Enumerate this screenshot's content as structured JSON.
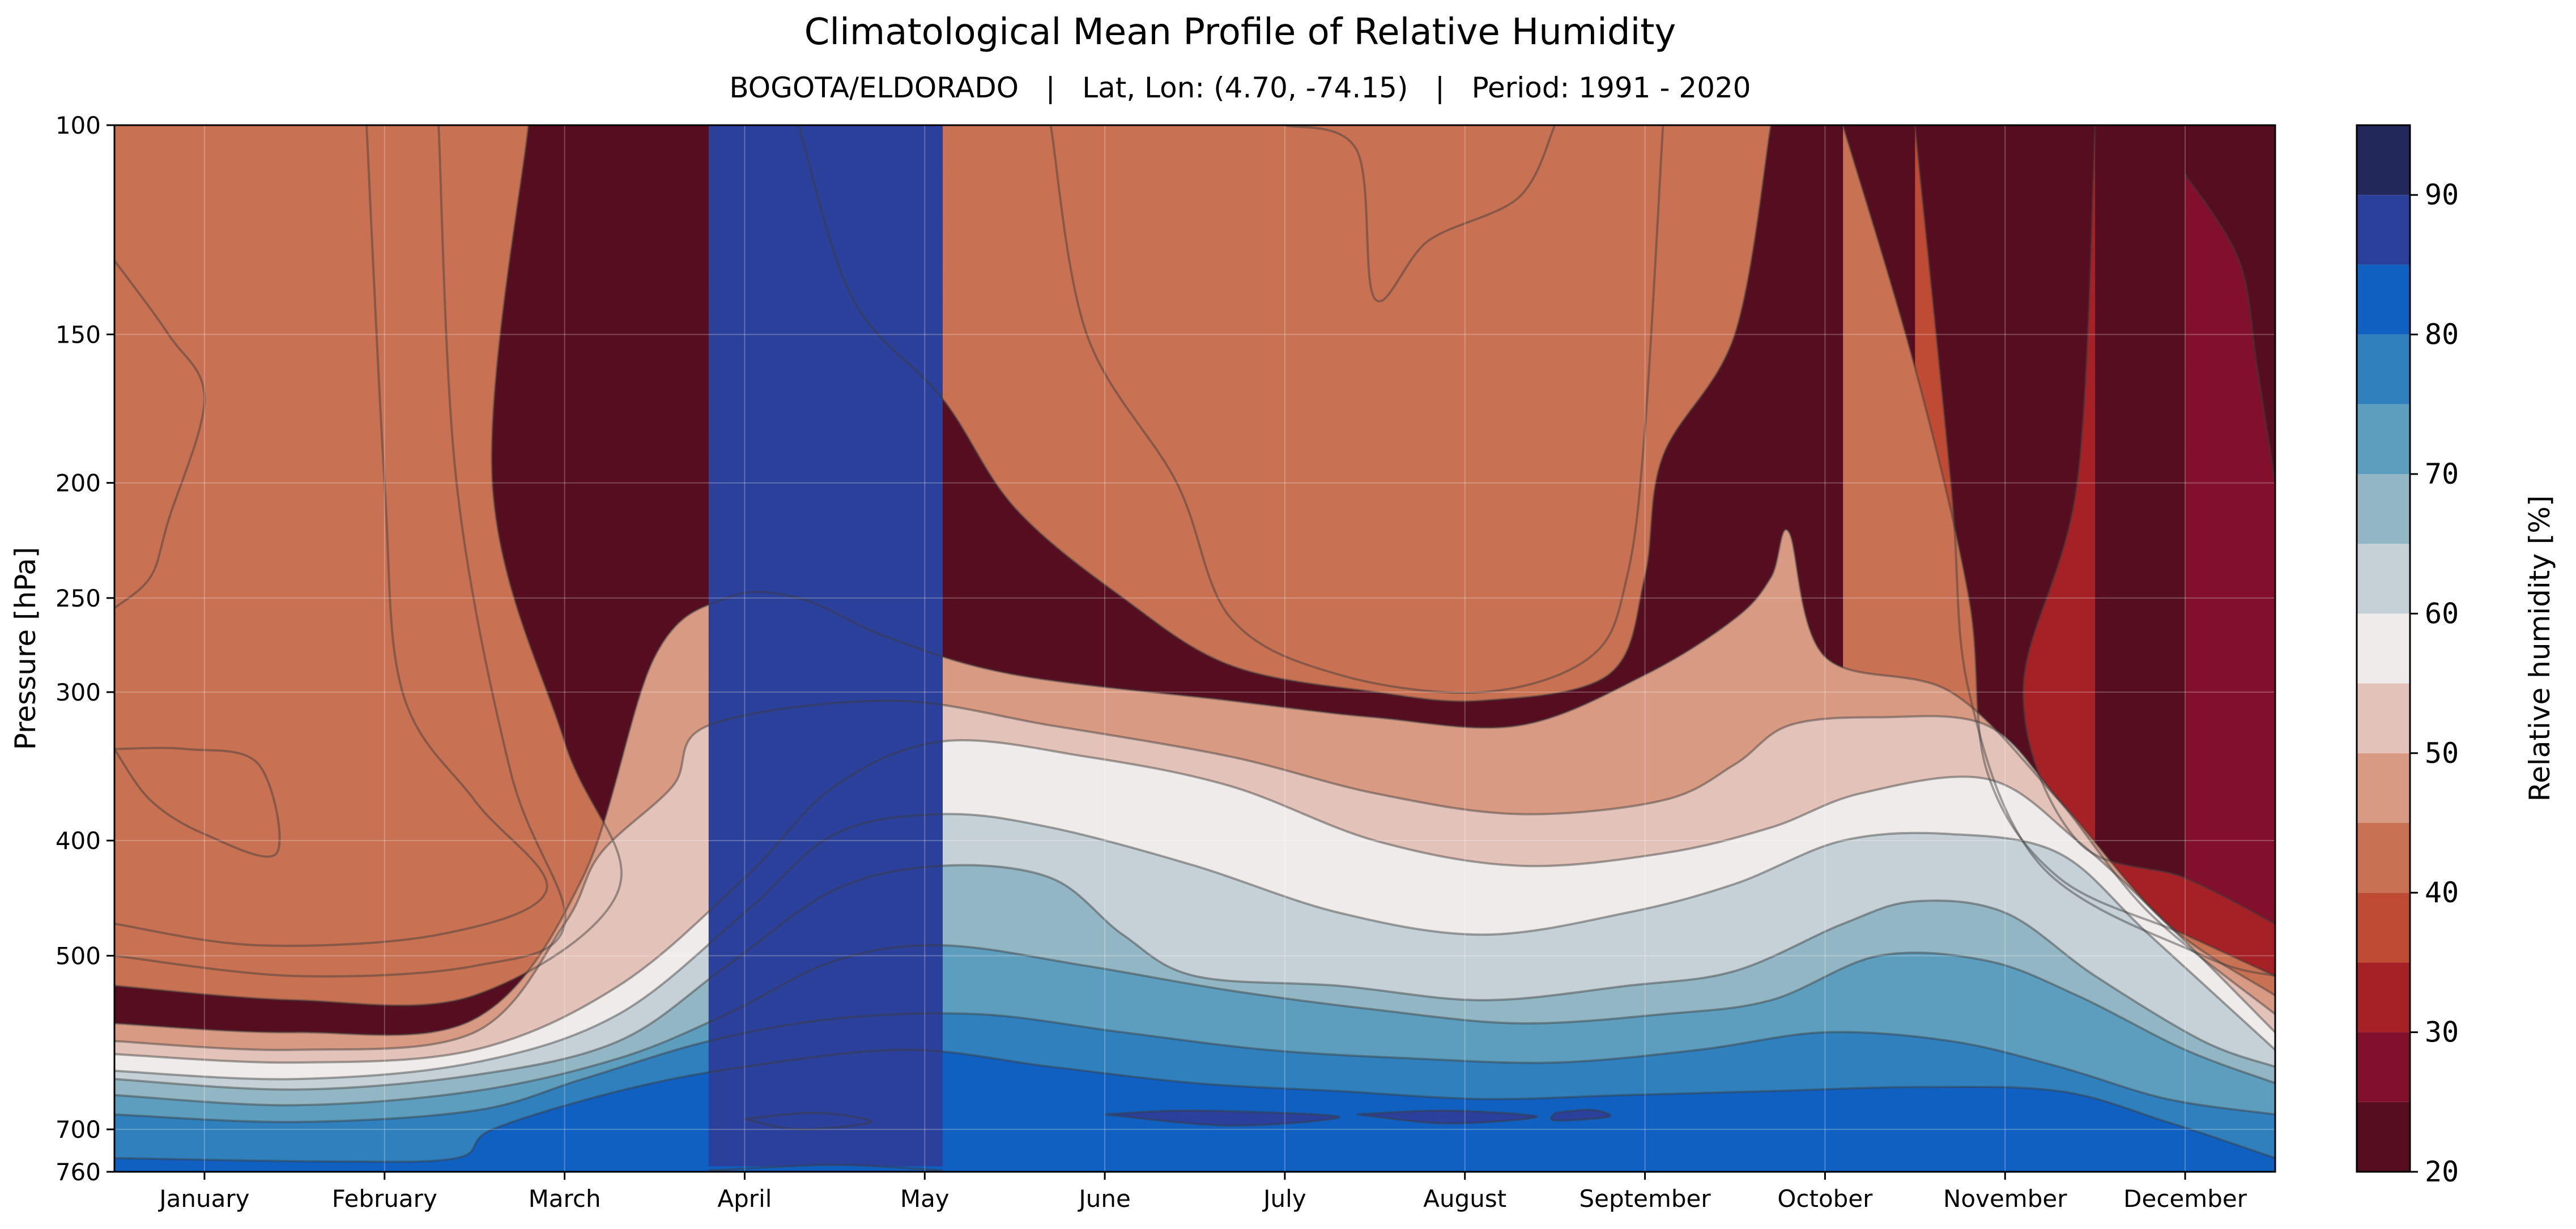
{
  "chart_data": {
    "type": "heatmap",
    "title": "Climatological Mean Profile of Relative Humidity",
    "subtitle": "BOGOTA/ELDORADO   |   Lat, Lon: (4.70, -74.15)   |   Period: 1991 - 2020",
    "xlabel": "",
    "ylabel": "Pressure [hPa]",
    "colorbar_label": "Relative humidity [%]",
    "x": [
      "January",
      "February",
      "March",
      "April",
      "May",
      "June",
      "July",
      "August",
      "September",
      "October",
      "November",
      "December"
    ],
    "y_ticks": [
      100,
      150,
      200,
      250,
      300,
      400,
      500,
      700,
      760
    ],
    "ylim": [
      760,
      100
    ],
    "y_scale": "log",
    "grid": true,
    "levels": [
      20,
      25,
      30,
      35,
      40,
      45,
      50,
      55,
      60,
      65,
      70,
      75,
      80,
      85,
      90,
      95
    ],
    "colorbar_ticks": [
      20,
      30,
      40,
      50,
      60,
      70,
      80,
      90
    ],
    "colors": [
      "#560d1f",
      "#820f2b",
      "#a52126",
      "#bf4b34",
      "#c97153",
      "#d89a82",
      "#e2c2b9",
      "#efebea",
      "#c5d1d7",
      "#92b6c3",
      "#5d9ebf",
      "#2f80bd",
      "#1060c1",
      "#2b409a",
      "#22285a"
    ],
    "boundaries": [
      {
        "level": 25,
        "segments": [
          [
            [
              0.0,
              130
            ],
            [
              0.3,
              150
            ],
            [
              0.5,
              170
            ],
            [
              0.3,
              215
            ],
            [
              0.2,
              240
            ],
            [
              0.0,
              255
            ]
          ],
          [
            [
              0.0,
              335
            ],
            [
              0.2,
              370
            ],
            [
              0.5,
              395
            ],
            [
              0.9,
              410
            ],
            [
              0.8,
              345
            ],
            [
              0.4,
              335
            ],
            [
              0.0,
              335
            ]
          ],
          [
            [
              11.5,
              110
            ],
            [
              11.8,
              130
            ],
            [
              11.9,
              160
            ],
            [
              12.0,
              200
            ]
          ]
        ]
      },
      {
        "level": 30,
        "segments": [
          [
            [
              0.0,
              470
            ],
            [
              0.8,
              490
            ],
            [
              1.8,
              480
            ],
            [
              2.4,
              440
            ],
            [
              2.0,
              370
            ],
            [
              1.6,
              300
            ],
            [
              1.5,
              200
            ],
            [
              1.4,
              100
            ]
          ],
          [
            [
              6.5,
              100
            ],
            [
              6.9,
              105
            ],
            [
              7.0,
              140
            ],
            [
              7.3,
              125
            ],
            [
              7.8,
              115
            ],
            [
              8.0,
              100
            ]
          ],
          [
            [
              11.0,
              100
            ],
            [
              10.9,
              200
            ],
            [
              10.6,
              300
            ],
            [
              10.9,
              400
            ],
            [
              11.5,
              430
            ],
            [
              12.0,
              470
            ]
          ]
        ]
      },
      {
        "level": 35,
        "segments": [
          [
            [
              0.0,
              500
            ],
            [
              1.0,
              520
            ],
            [
              2.0,
              510
            ],
            [
              2.5,
              470
            ],
            [
              2.2,
              350
            ],
            [
              1.9,
              200
            ],
            [
              1.8,
              100
            ]
          ],
          [
            [
              5.2,
              100
            ],
            [
              5.4,
              150
            ],
            [
              5.9,
              200
            ],
            [
              6.2,
              260
            ],
            [
              6.8,
              290
            ],
            [
              7.6,
              300
            ],
            [
              8.2,
              280
            ],
            [
              8.4,
              240
            ],
            [
              8.5,
              180
            ],
            [
              8.6,
              100
            ]
          ],
          [
            [
              10.0,
              100
            ],
            [
              10.2,
              200
            ],
            [
              10.3,
              300
            ],
            [
              10.7,
              420
            ],
            [
              11.6,
              500
            ],
            [
              12.0,
              520
            ]
          ]
        ]
      },
      {
        "level": 40,
        "segments": [
          [
            [
              0.0,
              530
            ],
            [
              1.0,
              545
            ],
            [
              2.0,
              540
            ],
            [
              2.8,
              440
            ],
            [
              2.5,
              330
            ],
            [
              2.1,
              200
            ],
            [
              2.3,
              100
            ]
          ],
          [
            [
              3.8,
              100
            ],
            [
              4.1,
              140
            ],
            [
              4.6,
              170
            ],
            [
              5.0,
              210
            ],
            [
              5.6,
              250
            ],
            [
              6.2,
              285
            ],
            [
              7.0,
              300
            ],
            [
              7.6,
              305
            ],
            [
              8.3,
              290
            ],
            [
              8.5,
              240
            ],
            [
              8.6,
              190
            ],
            [
              9.0,
              150
            ],
            [
              9.2,
              100
            ]
          ],
          [
            [
              9.6,
              100
            ],
            [
              10.0,
              160
            ],
            [
              10.3,
              250
            ],
            [
              10.4,
              350
            ],
            [
              10.8,
              430
            ],
            [
              11.5,
              480
            ],
            [
              12.0,
              520
            ]
          ]
        ]
      },
      {
        "level": 45,
        "segments": [
          [
            [
              0.0,
              570
            ],
            [
              1.0,
              580
            ],
            [
              2.0,
              565
            ],
            [
              2.6,
              430
            ],
            [
              3.0,
              280
            ],
            [
              3.4,
              250
            ],
            [
              3.8,
              250
            ],
            [
              4.3,
              270
            ],
            [
              5.0,
              290
            ],
            [
              6.2,
              305
            ],
            [
              7.0,
              315
            ],
            [
              7.8,
              320
            ],
            [
              8.5,
              290
            ],
            [
              9.0,
              260
            ],
            [
              9.2,
              240
            ],
            [
              9.3,
              220
            ],
            [
              9.5,
              280
            ],
            [
              10.2,
              300
            ],
            [
              10.8,
              370
            ],
            [
              11.4,
              470
            ],
            [
              12.0,
              540
            ]
          ]
        ]
      },
      {
        "level": 50,
        "segments": [
          [
            [
              0.0,
              590
            ],
            [
              1.0,
              600
            ],
            [
              2.0,
              580
            ],
            [
              2.5,
              470
            ],
            [
              2.7,
              410
            ],
            [
              3.1,
              360
            ],
            [
              3.3,
              320
            ],
            [
              4.3,
              305
            ],
            [
              5.2,
              320
            ],
            [
              6.2,
              340
            ],
            [
              7.0,
              365
            ],
            [
              7.8,
              380
            ],
            [
              8.6,
              370
            ],
            [
              9.0,
              345
            ],
            [
              9.3,
              320
            ],
            [
              9.8,
              315
            ],
            [
              10.4,
              320
            ],
            [
              10.8,
              370
            ],
            [
              11.3,
              460
            ],
            [
              12.0,
              560
            ]
          ]
        ]
      },
      {
        "level": 55,
        "segments": [
          [
            [
              0.0,
              605
            ],
            [
              1.0,
              615
            ],
            [
              2.0,
              600
            ],
            [
              2.8,
              530
            ],
            [
              3.5,
              430
            ],
            [
              4.0,
              360
            ],
            [
              4.6,
              330
            ],
            [
              5.4,
              340
            ],
            [
              6.2,
              360
            ],
            [
              7.0,
              400
            ],
            [
              7.8,
              420
            ],
            [
              8.6,
              410
            ],
            [
              9.2,
              390
            ],
            [
              9.7,
              365
            ],
            [
              10.4,
              355
            ],
            [
              10.9,
              400
            ],
            [
              11.4,
              470
            ],
            [
              12.0,
              580
            ]
          ]
        ]
      },
      {
        "level": 60,
        "segments": [
          [
            [
              0.0,
              625
            ],
            [
              1.0,
              635
            ],
            [
              2.0,
              615
            ],
            [
              2.8,
              560
            ],
            [
              3.5,
              460
            ],
            [
              4.0,
              395
            ],
            [
              4.6,
              380
            ],
            [
              5.2,
              390
            ],
            [
              6.0,
              420
            ],
            [
              6.8,
              460
            ],
            [
              7.6,
              480
            ],
            [
              8.4,
              460
            ],
            [
              9.0,
              435
            ],
            [
              9.6,
              400
            ],
            [
              10.2,
              395
            ],
            [
              10.8,
              410
            ],
            [
              11.3,
              480
            ],
            [
              12.0,
              600
            ]
          ]
        ]
      },
      {
        "level": 65,
        "segments": [
          [
            [
              0.0,
              635
            ],
            [
              1.0,
              648
            ],
            [
              2.0,
              630
            ],
            [
              2.8,
              590
            ],
            [
              3.4,
              510
            ],
            [
              4.0,
              440
            ],
            [
              4.6,
              420
            ],
            [
              5.2,
              430
            ],
            [
              5.6,
              480
            ],
            [
              6.0,
              520
            ],
            [
              6.8,
              530
            ],
            [
              7.6,
              545
            ],
            [
              8.4,
              530
            ],
            [
              9.0,
              515
            ],
            [
              9.6,
              470
            ],
            [
              10.0,
              450
            ],
            [
              10.5,
              460
            ],
            [
              11.0,
              520
            ],
            [
              11.6,
              590
            ],
            [
              12.0,
              620
            ]
          ]
        ]
      },
      {
        "level": 70,
        "segments": [
          [
            [
              0.0,
              655
            ],
            [
              1.0,
              668
            ],
            [
              2.0,
              650
            ],
            [
              2.8,
              610
            ],
            [
              3.4,
              560
            ],
            [
              4.0,
              505
            ],
            [
              4.6,
              490
            ],
            [
              5.4,
              510
            ],
            [
              6.2,
              535
            ],
            [
              7.0,
              555
            ],
            [
              7.8,
              570
            ],
            [
              8.6,
              560
            ],
            [
              9.2,
              545
            ],
            [
              9.8,
              500
            ],
            [
              10.4,
              505
            ],
            [
              10.9,
              540
            ],
            [
              11.5,
              600
            ],
            [
              12.0,
              640
            ]
          ]
        ]
      },
      {
        "level": 75,
        "segments": [
          [
            [
              0.0,
              680
            ],
            [
              1.0,
              690
            ],
            [
              2.0,
              675
            ],
            [
              2.6,
              635
            ],
            [
              3.3,
              590
            ],
            [
              4.0,
              565
            ],
            [
              4.8,
              560
            ],
            [
              5.6,
              580
            ],
            [
              6.4,
              600
            ],
            [
              7.2,
              610
            ],
            [
              8.0,
              615
            ],
            [
              8.8,
              600
            ],
            [
              9.5,
              580
            ],
            [
              10.2,
              590
            ],
            [
              10.8,
              620
            ],
            [
              11.4,
              660
            ],
            [
              12.0,
              680
            ]
          ]
        ]
      },
      {
        "level": 80,
        "segments": [
          [
            [
              0.0,
              740
            ],
            [
              1.2,
              745
            ],
            [
              1.9,
              740
            ],
            [
              2.1,
              700
            ],
            [
              2.8,
              650
            ],
            [
              3.5,
              620
            ],
            [
              4.4,
              600
            ],
            [
              5.2,
              620
            ],
            [
              6.0,
              640
            ],
            [
              6.8,
              650
            ],
            [
              7.6,
              660
            ],
            [
              8.4,
              655
            ],
            [
              9.2,
              650
            ],
            [
              10.0,
              645
            ],
            [
              10.8,
              650
            ],
            [
              11.4,
              690
            ],
            [
              12.0,
              740
            ]
          ]
        ]
      },
      {
        "level": 85,
        "segments": [
          [
            [
              3.5,
              686
            ],
            [
              3.9,
              678
            ],
            [
              4.2,
              690
            ],
            [
              3.8,
              700
            ],
            [
              3.5,
              686
            ]
          ],
          [
            [
              5.5,
              680
            ],
            [
              6.0,
              675
            ],
            [
              6.8,
              683
            ],
            [
              6.2,
              695
            ],
            [
              5.5,
              680
            ]
          ],
          [
            [
              6.9,
              680
            ],
            [
              7.4,
              675
            ],
            [
              7.9,
              683
            ],
            [
              7.4,
              692
            ],
            [
              6.9,
              680
            ]
          ],
          [
            [
              8.0,
              678
            ],
            [
              8.2,
              674
            ],
            [
              8.3,
              683
            ],
            [
              8.0,
              688
            ],
            [
              8.0,
              678
            ]
          ],
          [
            [
              3.3,
              758
            ],
            [
              4.0,
              750
            ],
            [
              4.6,
              758
            ]
          ]
        ]
      }
    ]
  }
}
